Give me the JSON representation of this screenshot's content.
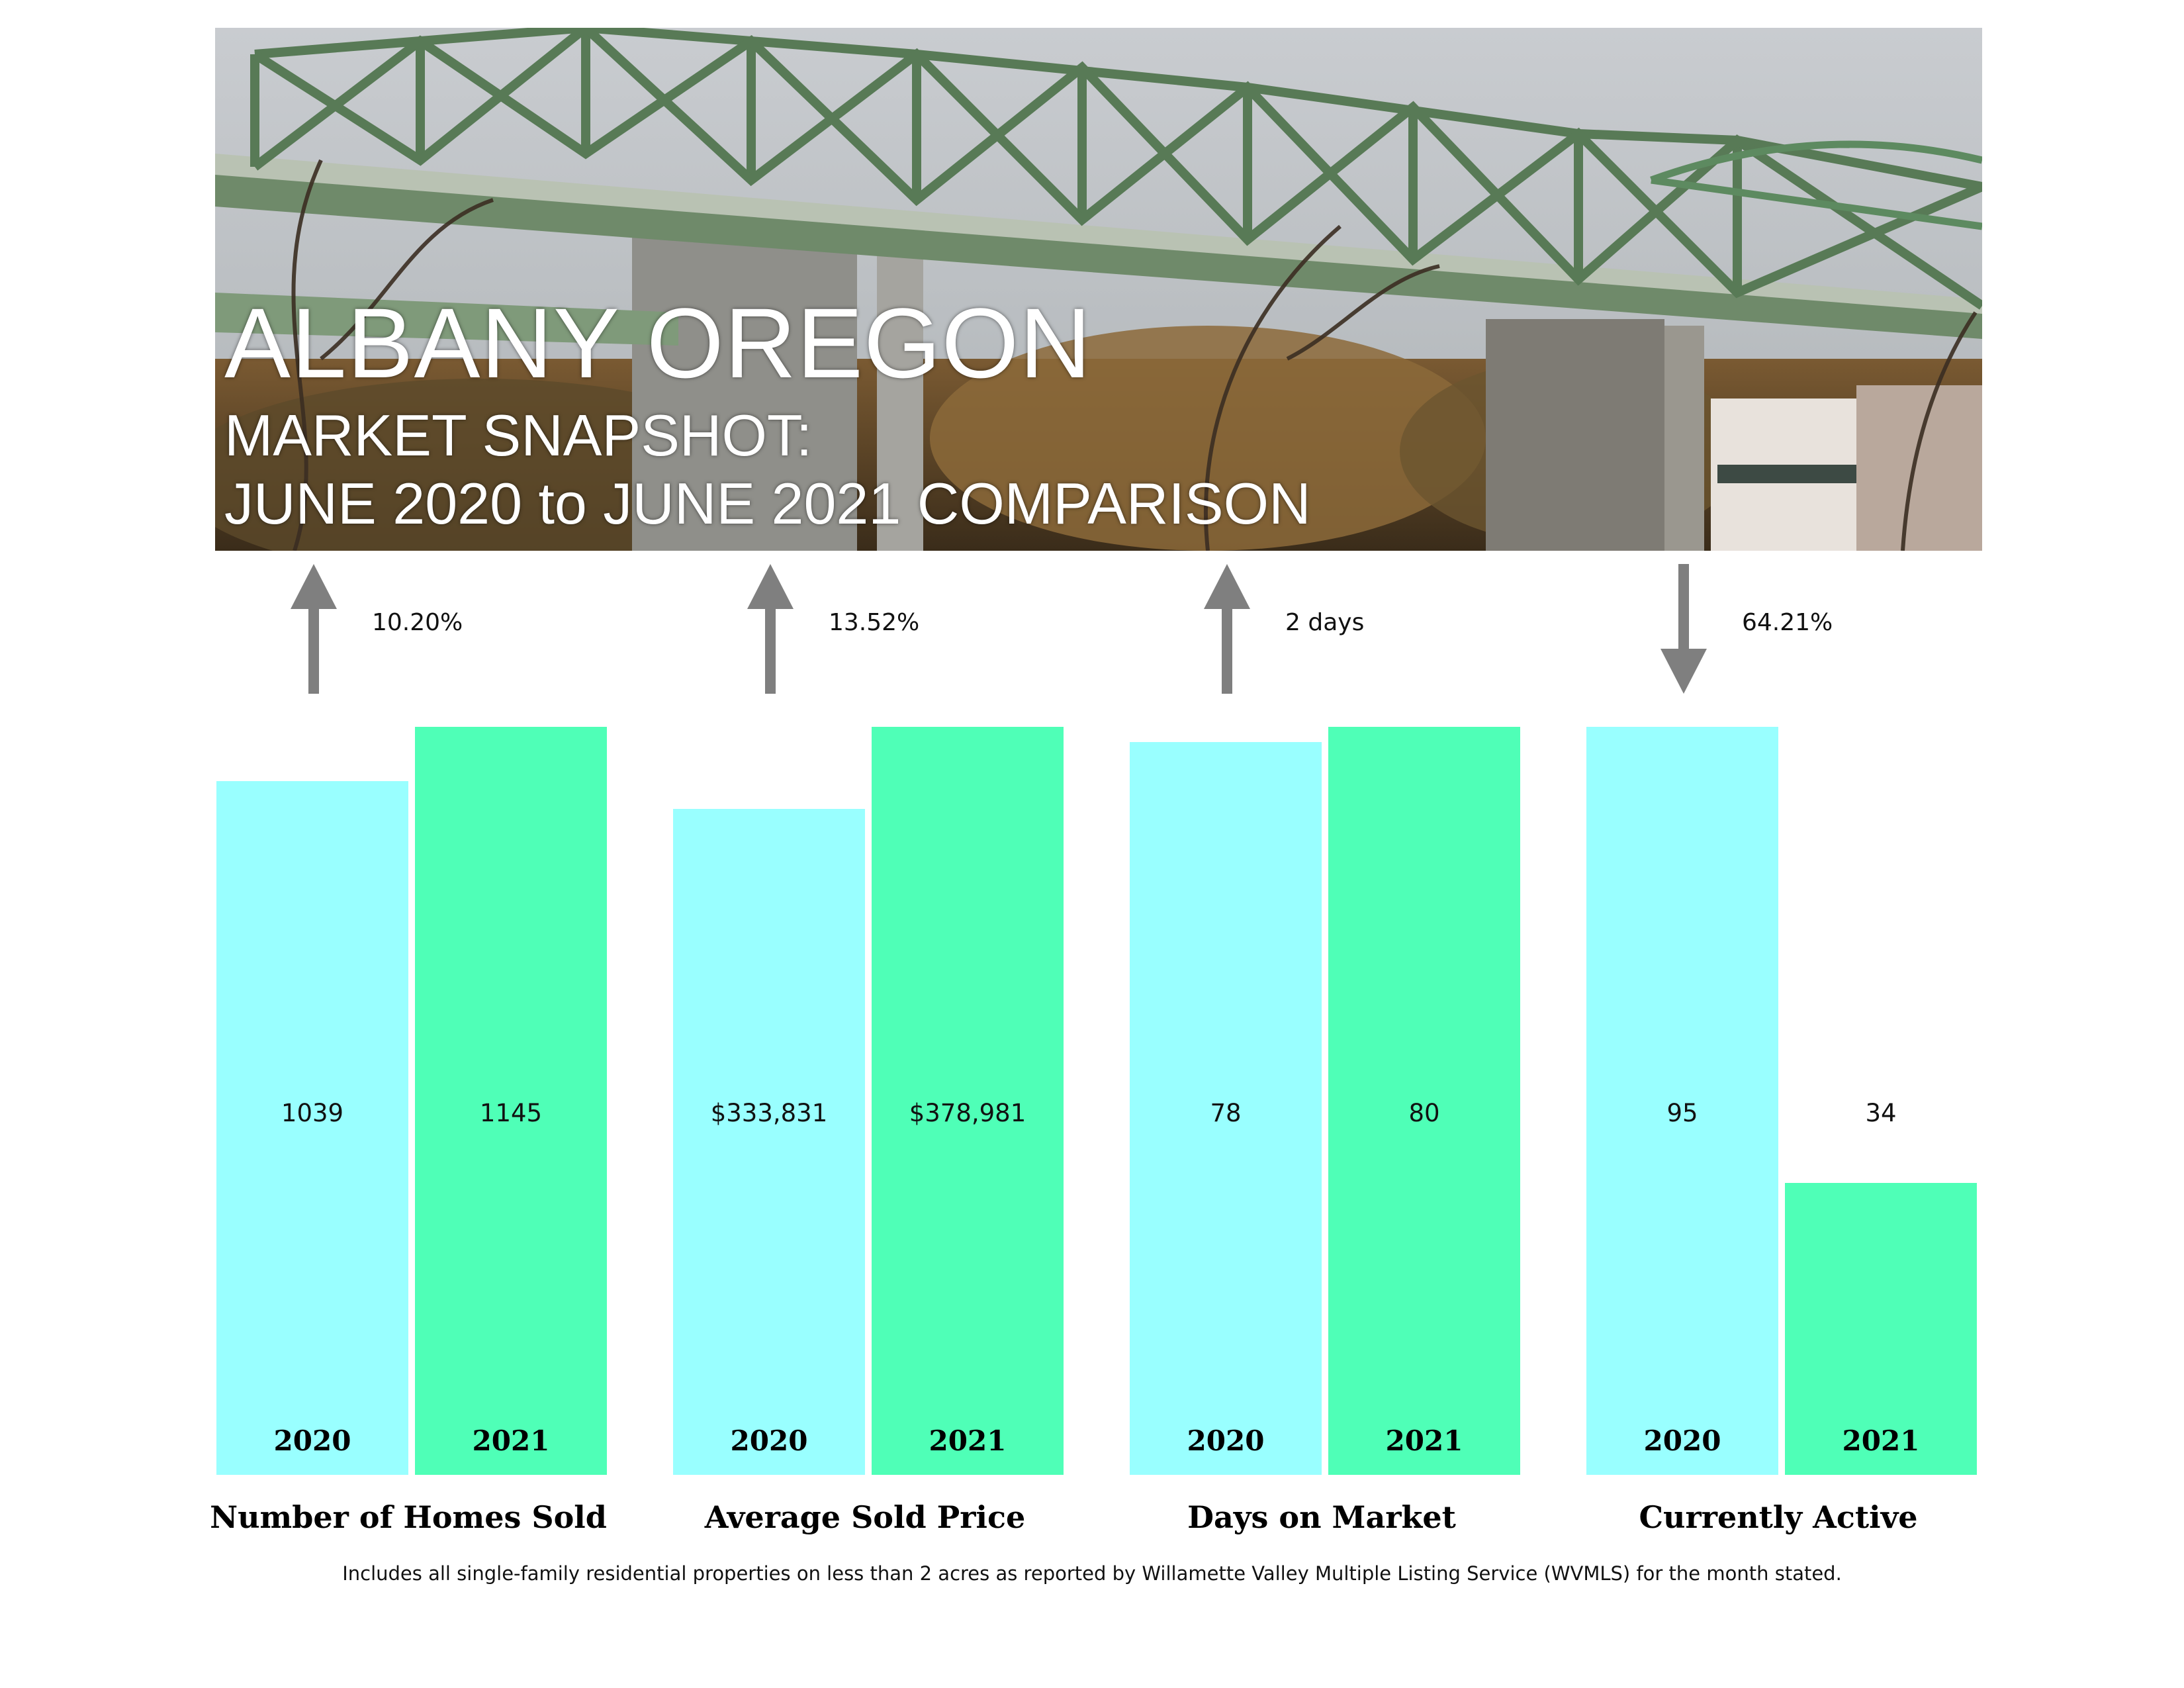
{
  "header": {
    "title": "ALBANY OREGON",
    "subtitle_line1": "MARKET SNAPSHOT:",
    "subtitle_line2": "JUNE 2020 to JUNE 2021 COMPARISON"
  },
  "footnote": "Includes all single-family residential properties on less than 2 acres as reported by Willamette Valley Multiple Listing Service (WVMLS) for the month stated.",
  "colors": {
    "year_2020": "#99ffff",
    "year_2021": "#4fffb7",
    "arrow": "#7f7f7f"
  },
  "chart_data": {
    "type": "bar",
    "title": "",
    "series_names": [
      "2020",
      "2021"
    ],
    "groups": [
      {
        "label": "Number of Homes Sold",
        "values": [
          1039,
          1145
        ],
        "value_labels": [
          "1039",
          "1145"
        ],
        "year_labels": [
          "2020",
          "2021"
        ],
        "change": "10.20%",
        "direction": "up",
        "bar_fill": [
          0.927,
          1.0
        ]
      },
      {
        "label": "Average Sold Price",
        "values": [
          333831,
          378981
        ],
        "value_labels": [
          "$333,831",
          "$378,981"
        ],
        "year_labels": [
          "2020",
          "2021"
        ],
        "change": "13.52%",
        "direction": "up",
        "bar_fill": [
          0.89,
          1.0
        ]
      },
      {
        "label": "Days on Market",
        "values": [
          78,
          80
        ],
        "value_labels": [
          "78",
          "80"
        ],
        "year_labels": [
          "2020",
          "2021"
        ],
        "change": "2 days",
        "direction": "up",
        "bar_fill": [
          0.98,
          1.0
        ]
      },
      {
        "label": "Currently Active",
        "values": [
          95,
          34
        ],
        "value_labels": [
          "95",
          "34"
        ],
        "year_labels": [
          "2020",
          "2021"
        ],
        "change": "64.21%",
        "direction": "down",
        "bar_fill": [
          1.0,
          0.39
        ]
      }
    ]
  }
}
